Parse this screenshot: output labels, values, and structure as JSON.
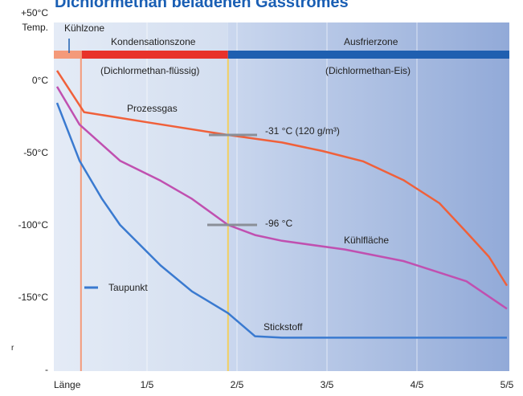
{
  "chart_data": {
    "type": "line",
    "title": "Dichlormethan beladenen Gasstromes",
    "y_label": "Temp.",
    "fragment": "r",
    "xlim": [
      0,
      1
    ],
    "ylim": [
      -200,
      50
    ],
    "xticks": [
      {
        "value": 0,
        "label": "Länge"
      },
      {
        "value": 0.2,
        "label": "1/5"
      },
      {
        "value": 0.4,
        "label": "2/5"
      },
      {
        "value": 0.6,
        "label": "3/5"
      },
      {
        "value": 0.8,
        "label": "4/5"
      },
      {
        "value": 1,
        "label": "5/5"
      }
    ],
    "yticks": [
      {
        "value": 50,
        "label": "+50°C"
      },
      {
        "value": 0,
        "label": "0°C"
      },
      {
        "value": -50,
        "label": "-50°C"
      },
      {
        "value": -100,
        "label": "-100°C"
      },
      {
        "value": -150,
        "label": "-150°C"
      },
      {
        "value": -200,
        "label": "-"
      }
    ],
    "zones": [
      {
        "label": "Kühlzone",
        "x": [
          0,
          0.055
        ],
        "color": "#f49a7a"
      },
      {
        "label": "Kondensationszone",
        "sublabel": "(Dichlormethan-flüssig)",
        "x": [
          0.055,
          0.38
        ],
        "color": "#e8322a"
      },
      {
        "label": "Ausfrierzone",
        "sublabel": "(Dichlormethan-Eis)",
        "x": [
          0.38,
          1
        ],
        "color": "#1f5fb0"
      }
    ],
    "series": [
      {
        "name": "Prozessgas",
        "color": "#f0603a",
        "x": [
          0,
          0.06,
          0.2,
          0.38,
          0.5,
          0.59,
          0.68,
          0.77,
          0.85,
          0.91,
          0.96,
          1.0
        ],
        "values": [
          6.7,
          -22,
          -29,
          -37.8,
          -43,
          -48.9,
          -56,
          -69,
          -85,
          -105,
          -122,
          -142
        ]
      },
      {
        "name": "Kühlfläche",
        "color": "#c050b0",
        "x": [
          0,
          0.05,
          0.14,
          0.23,
          0.3,
          0.38,
          0.44,
          0.5,
          0.64,
          0.77,
          0.91,
          1.0
        ],
        "values": [
          -4.4,
          -30.6,
          -55.6,
          -69.4,
          -82,
          -100,
          -107,
          -111,
          -117,
          -125,
          -139,
          -158
        ]
      },
      {
        "name": "Stickstoff",
        "color": "#3a7ad0",
        "x": [
          0,
          0.05,
          0.1,
          0.14,
          0.23,
          0.3,
          0.38,
          0.44,
          0.5,
          0.59,
          1.0
        ],
        "values": [
          -15.6,
          -55.6,
          -82,
          -100,
          -128,
          -146,
          -161,
          -177,
          -178,
          -178,
          -178
        ]
      }
    ],
    "annotations": [
      "-31 °C (120 g/m³)",
      "-96 °C",
      "Taupunkt"
    ]
  }
}
